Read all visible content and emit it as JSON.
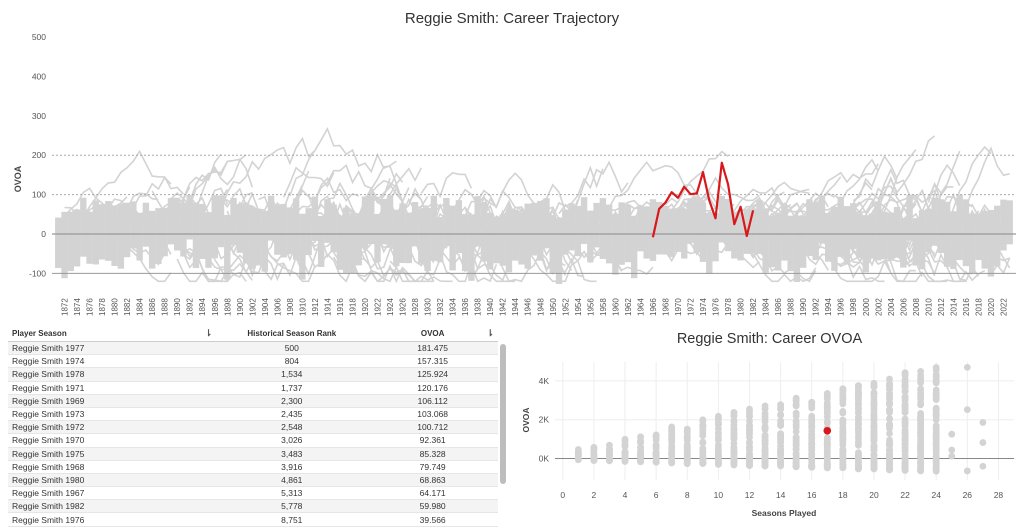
{
  "trajectory": {
    "title": "Reggie Smith: Career Trajectory",
    "ylabel": "OVOA",
    "y_ticks": [
      500,
      400,
      300,
      200,
      100,
      0,
      -100
    ],
    "x_ticks": [
      "1872",
      "1874",
      "1876",
      "1878",
      "1880",
      "1882",
      "1884",
      "1886",
      "1888",
      "1890",
      "1892",
      "1894",
      "1896",
      "1898",
      "1900",
      "1902",
      "1904",
      "1906",
      "1908",
      "1910",
      "1912",
      "1914",
      "1916",
      "1918",
      "1920",
      "1922",
      "1924",
      "1926",
      "1928",
      "1930",
      "1932",
      "1934",
      "1936",
      "1938",
      "1940",
      "1942",
      "1944",
      "1946",
      "1948",
      "1950",
      "1952",
      "1954",
      "1956",
      "1958",
      "1960",
      "1962",
      "1964",
      "1966",
      "1968",
      "1970",
      "1972",
      "1974",
      "1976",
      "1978",
      "1980",
      "1982",
      "1984",
      "1986",
      "1988",
      "1990",
      "1992",
      "1994",
      "1996",
      "1998",
      "2000",
      "2002",
      "2004",
      "2006",
      "2008",
      "2010",
      "2012",
      "2014",
      "2016",
      "2018",
      "2020",
      "2022"
    ],
    "highlight_color": "#d7191c",
    "background_color": "#d3d3d3"
  },
  "chart_data": [
    {
      "type": "line",
      "title": "Reggie Smith: Career Trajectory",
      "xlabel": "",
      "ylabel": "OVOA",
      "xlim": [
        1870,
        2024
      ],
      "ylim": [
        -130,
        510
      ],
      "reference_lines": [
        200,
        100,
        0,
        -100
      ],
      "highlight_series": {
        "x": [
          1966,
          1967,
          1968,
          1969,
          1970,
          1971,
          1972,
          1973,
          1974,
          1975,
          1976,
          1977,
          1978,
          1979,
          1980,
          1981,
          1982
        ],
        "y": [
          -8,
          64,
          80,
          106,
          92,
          120,
          101,
          103,
          157,
          85,
          40,
          181,
          126,
          25,
          69,
          -5,
          60
        ]
      }
    },
    {
      "type": "scatter",
      "title": "Reggie Smith: Career OVOA",
      "xlabel": "Seasons Played",
      "ylabel": "OVOA",
      "xlim": [
        -0.5,
        29
      ],
      "ylim": [
        -1000,
        4900
      ],
      "x_ticks": [
        0,
        2,
        4,
        6,
        8,
        10,
        12,
        14,
        16,
        18,
        20,
        22,
        24,
        26,
        28
      ],
      "y_ticks": [
        "0K",
        "2K",
        "4K"
      ],
      "highlight_point": {
        "x": 17,
        "y": 1430
      },
      "point_color": "#d3d3d3",
      "highlight_color": "#d7191c"
    }
  ],
  "scatter": {
    "title": "Reggie Smith: Career OVOA",
    "xlabel": "Seasons Played",
    "ylabel": "OVOA",
    "x_ticks": [
      "0",
      "2",
      "4",
      "6",
      "8",
      "10",
      "12",
      "14",
      "16",
      "18",
      "20",
      "22",
      "24",
      "26",
      "28"
    ],
    "y_ticks": [
      "4K",
      "2K",
      "0K"
    ]
  },
  "table": {
    "headers": [
      "Player Season",
      "Historical Season Rank",
      "OVOA"
    ],
    "rows": [
      [
        "Reggie Smith 1977",
        "500",
        "181.475"
      ],
      [
        "Reggie Smith 1974",
        "804",
        "157.315"
      ],
      [
        "Reggie Smith 1978",
        "1,534",
        "125.924"
      ],
      [
        "Reggie Smith 1971",
        "1,737",
        "120.176"
      ],
      [
        "Reggie Smith 1969",
        "2,300",
        "106.112"
      ],
      [
        "Reggie Smith 1973",
        "2,435",
        "103.068"
      ],
      [
        "Reggie Smith 1972",
        "2,548",
        "100.712"
      ],
      [
        "Reggie Smith 1970",
        "3,026",
        "92.361"
      ],
      [
        "Reggie Smith 1975",
        "3,483",
        "85.328"
      ],
      [
        "Reggie Smith 1968",
        "3,916",
        "79.749"
      ],
      [
        "Reggie Smith 1980",
        "4,861",
        "68.863"
      ],
      [
        "Reggie Smith 1967",
        "5,313",
        "64.171"
      ],
      [
        "Reggie Smith 1982",
        "5,778",
        "59.980"
      ],
      [
        "Reggie Smith 1976",
        "8,751",
        "39.566"
      ]
    ]
  }
}
